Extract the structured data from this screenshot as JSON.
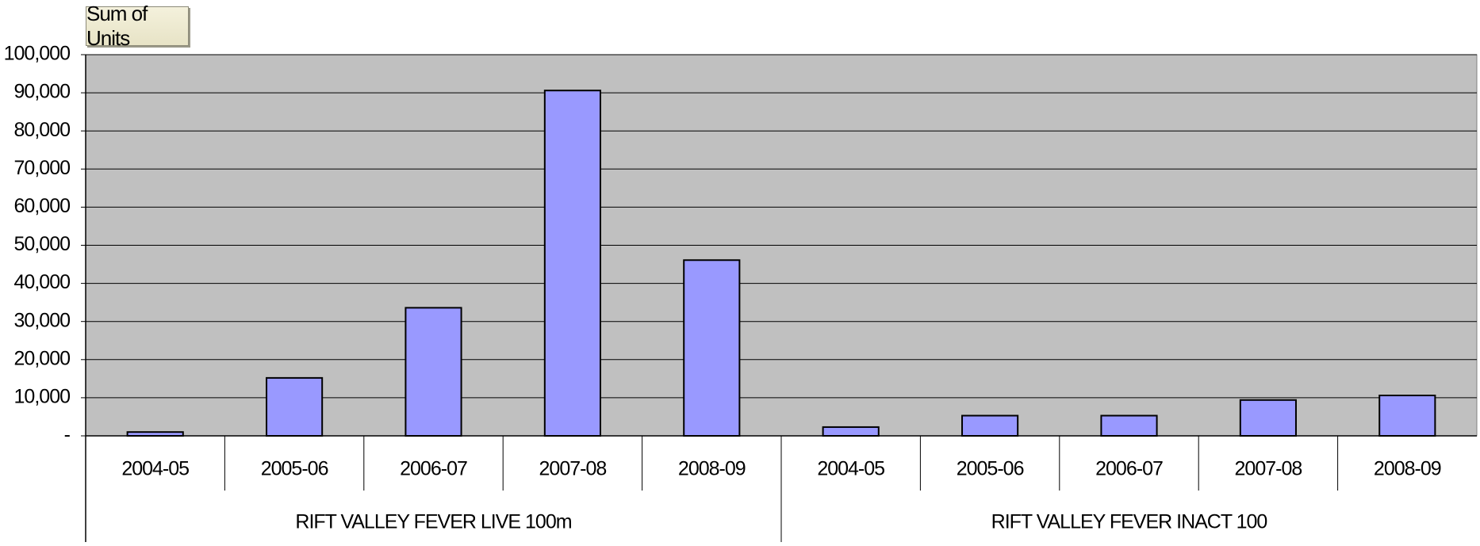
{
  "pivot_field_button": "Sum of Units",
  "colors": {
    "plot_bg": "#c0c0c0",
    "bar_fill": "#9999ff",
    "bar_stroke": "#000000",
    "gridline": "#000000"
  },
  "chart_data": {
    "type": "bar",
    "title": "",
    "xlabel": "",
    "ylabel": "",
    "ylim": [
      0,
      100000
    ],
    "yticks": [
      {
        "value": 0,
        "label": "-"
      },
      {
        "value": 10000,
        "label": "10,000"
      },
      {
        "value": 20000,
        "label": "20,000"
      },
      {
        "value": 30000,
        "label": "30,000"
      },
      {
        "value": 40000,
        "label": "40,000"
      },
      {
        "value": 50000,
        "label": "50,000"
      },
      {
        "value": 60000,
        "label": "60,000"
      },
      {
        "value": 70000,
        "label": "70,000"
      },
      {
        "value": 80000,
        "label": "80,000"
      },
      {
        "value": 90000,
        "label": "90,000"
      },
      {
        "value": 100000,
        "label": "100,000"
      }
    ],
    "grid": true,
    "legend": "none",
    "groups": [
      {
        "label": "RIFT VALLEY FEVER LIVE 100m",
        "categories": [
          "2004-05",
          "2005-06",
          "2006-07",
          "2007-08",
          "2008-09"
        ],
        "values": [
          1000,
          15200,
          33600,
          90600,
          46100
        ]
      },
      {
        "label": "RIFT VALLEY FEVER INACT 100",
        "categories": [
          "2004-05",
          "2005-06",
          "2006-07",
          "2007-08",
          "2008-09"
        ],
        "values": [
          2300,
          5300,
          5300,
          9400,
          10600
        ]
      }
    ]
  }
}
